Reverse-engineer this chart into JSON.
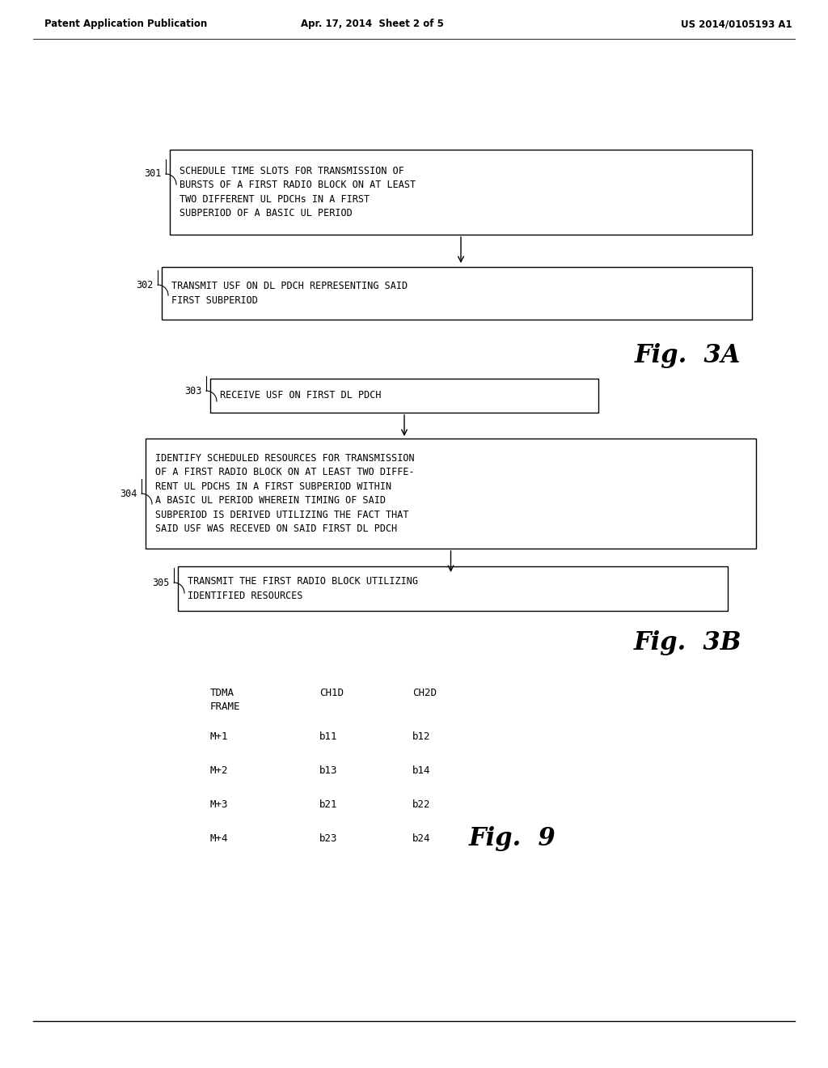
{
  "bg_color": "#ffffff",
  "header_left": "Patent Application Publication",
  "header_center": "Apr. 17, 2014  Sheet 2 of 5",
  "header_right": "US 2014/0105193 A1",
  "fig3a_label": "Fig.  3A",
  "fig3b_label": "Fig.  3B",
  "fig9_label": "Fig.  9",
  "box301_text": "SCHEDULE TIME SLOTS FOR TRANSMISSION OF\nBURSTS OF A FIRST RADIO BLOCK ON AT LEAST\nTWO DIFFERENT UL PDCHs IN A FIRST\nSUBPERIOD OF A BASIC UL PERIOD",
  "label301": "301",
  "box302_text": "TRANSMIT USF ON DL PDCH REPRESENTING SAID\nFIRST SUBPERIOD",
  "label302": "302",
  "box303_text": "RECEIVE USF ON FIRST DL PDCH",
  "label303": "303",
  "box304_text": "IDENTIFY SCHEDULED RESOURCES FOR TRANSMISSION\nOF A FIRST RADIO BLOCK ON AT LEAST TWO DIFFE-\nRENT UL PDCHS IN A FIRST SUBPERIOD WITHIN\nA BASIC UL PERIOD WHEREIN TIMING OF SAID\nSUBPERIOD IS DERIVED UTILIZING THE FACT THAT\nSAID USF WAS RECEVED ON SAID FIRST DL PDCH",
  "label304": "304",
  "box305_text": "TRANSMIT THE FIRST RADIO BLOCK UTILIZING\nIDENTIFIED RESOURCES",
  "label305": "305",
  "table_col1_header": "TDMA\nFRAME",
  "table_col2_header": "CH1D",
  "table_col3_header": "CH2D",
  "table_rows": [
    [
      "M+1",
      "b11",
      "b12"
    ],
    [
      "M+2",
      "b13",
      "b14"
    ],
    [
      "M+3",
      "b21",
      "b22"
    ],
    [
      "M+4",
      "b23",
      "b24"
    ]
  ]
}
